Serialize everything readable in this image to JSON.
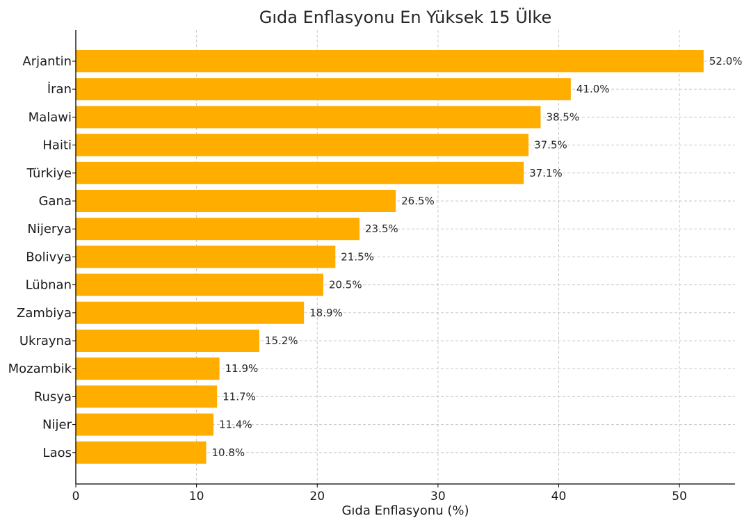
{
  "chart_data": {
    "type": "bar",
    "orientation": "horizontal",
    "title": "Gıda Enflasyonu En Yüksek 15 Ülke",
    "xlabel": "Gıda Enflasyonu (%)",
    "ylabel": "",
    "xlim": [
      0,
      54.6
    ],
    "xticks": [
      0,
      10,
      20,
      30,
      40,
      50
    ],
    "grid": true,
    "bar_color": "#FFAE00",
    "categories": [
      "Arjantin",
      "İran",
      "Malawi",
      "Haiti",
      "Türkiye",
      "Gana",
      "Nijerya",
      "Bolivya",
      "Lübnan",
      "Zambiya",
      "Ukrayna",
      "Mozambik",
      "Rusya",
      "Nijer",
      "Laos"
    ],
    "values": [
      52.0,
      41.0,
      38.5,
      37.5,
      37.1,
      26.5,
      23.5,
      21.5,
      20.5,
      18.9,
      15.2,
      11.9,
      11.7,
      11.4,
      10.8
    ],
    "value_labels": [
      "52.0%",
      "41.0%",
      "38.5%",
      "37.5%",
      "37.1%",
      "26.5%",
      "23.5%",
      "21.5%",
      "20.5%",
      "18.9%",
      "15.2%",
      "11.9%",
      "11.7%",
      "11.4%",
      "10.8%"
    ]
  }
}
